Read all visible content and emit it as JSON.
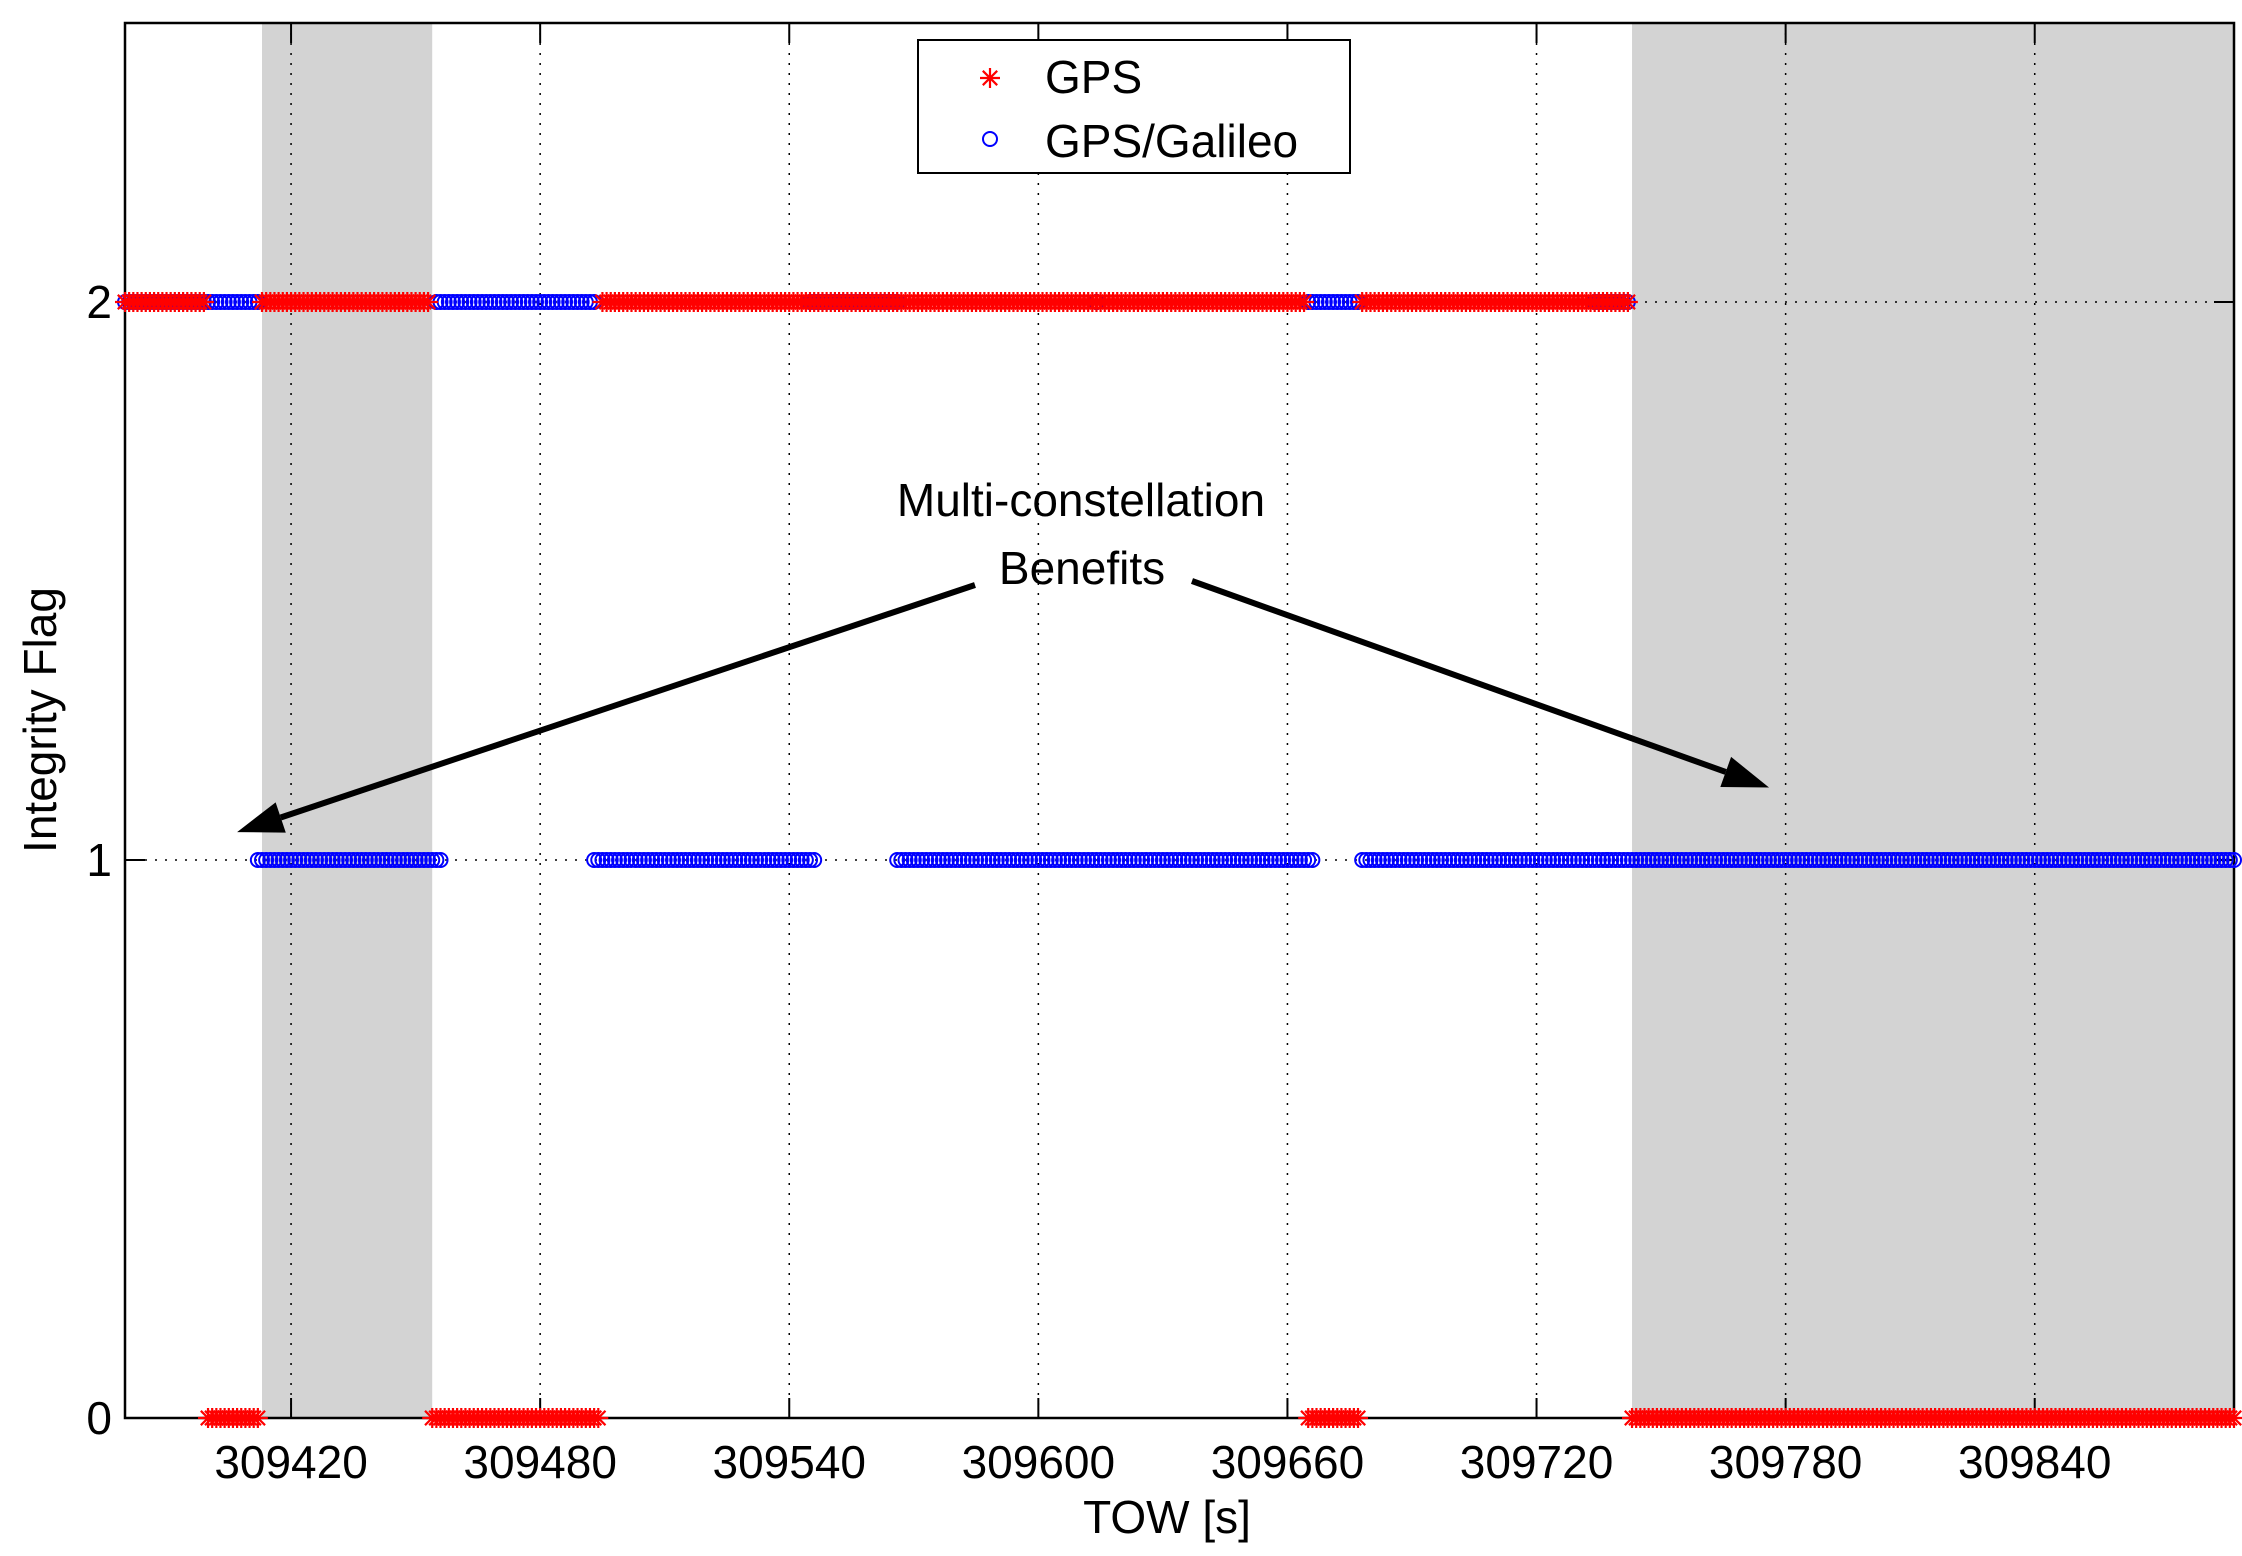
{
  "chart_data": {
    "type": "scatter",
    "xlabel": "TOW [s]",
    "ylabel": "Integrity Flag",
    "xlim": [
      309380,
      309888
    ],
    "ylim": [
      0,
      2.5
    ],
    "xticks": [
      309420,
      309480,
      309540,
      309600,
      309660,
      309720,
      309780,
      309840
    ],
    "xtick_labels": [
      "309420",
      "309480",
      "309540",
      "309600",
      "309660",
      "309720",
      "309780",
      "309840"
    ],
    "yticks": [
      0,
      1,
      2
    ],
    "ytick_labels": [
      "0",
      "1",
      "2"
    ],
    "grid": true,
    "legend_position": "top-center",
    "shaded_regions": [
      [
        309413,
        309454
      ],
      [
        309743,
        309888
      ]
    ],
    "annotation": {
      "lines": [
        "Multi-constellation",
        "Benefits"
      ],
      "arrow_targets": [
        [
          309407,
          1.05
        ],
        [
          309776,
          1.13
        ]
      ]
    },
    "series": [
      {
        "name": "GPS",
        "marker": "asterisk",
        "color": "#ff0000",
        "segments": [
          {
            "y": 2,
            "x_start": 309380,
            "x_end": 309399
          },
          {
            "y": 0,
            "x_start": 309400,
            "x_end": 309412
          },
          {
            "y": 2,
            "x_start": 309413,
            "x_end": 309453
          },
          {
            "y": 0,
            "x_start": 309454,
            "x_end": 309494
          },
          {
            "y": 2,
            "x_start": 309495,
            "x_end": 309664
          },
          {
            "y": 0,
            "x_start": 309665,
            "x_end": 309677
          },
          {
            "y": 2,
            "x_start": 309678,
            "x_end": 309742
          },
          {
            "y": 0,
            "x_start": 309743,
            "x_end": 309888
          }
        ]
      },
      {
        "name": "GPS/Galileo",
        "marker": "circle",
        "color": "#0000ff",
        "segments": [
          {
            "y": 2,
            "x_start": 309380,
            "x_end": 309412
          },
          {
            "y": 1,
            "x_start": 309412,
            "x_end": 309456
          },
          {
            "y": 2,
            "x_start": 309455,
            "x_end": 309493
          },
          {
            "y": 1,
            "x_start": 309493,
            "x_end": 309546
          },
          {
            "y": 2,
            "x_start": 309545,
            "x_end": 309566
          },
          {
            "y": 1,
            "x_start": 309566,
            "x_end": 309666
          },
          {
            "y": 2,
            "x_start": 309665,
            "x_end": 309677
          },
          {
            "y": 1,
            "x_start": 309678,
            "x_end": 309742
          },
          {
            "y": 2,
            "x_start": 309734,
            "x_end": 309742
          },
          {
            "y": 1,
            "x_start": 309743,
            "x_end": 309888
          }
        ],
        "extra_points": [
          {
            "x": 309614,
            "y": 2
          },
          {
            "x": 309737,
            "y": 1
          }
        ]
      }
    ]
  }
}
